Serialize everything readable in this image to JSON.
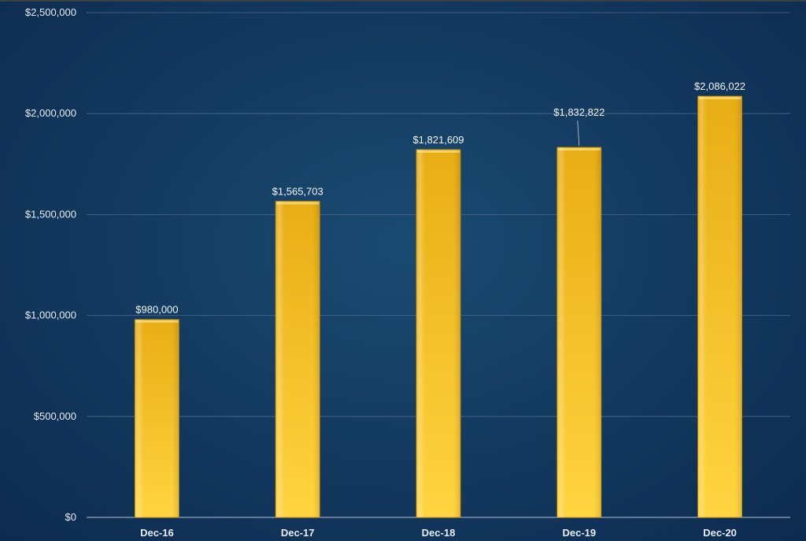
{
  "chart_data": {
    "type": "bar",
    "categories": [
      "Dec-16",
      "Dec-17",
      "Dec-18",
      "Dec-19",
      "Dec-20"
    ],
    "values": [
      980000,
      1565703,
      1821609,
      1832822,
      2086022
    ],
    "data_labels": [
      "$980,000",
      "$1,565,703",
      "$1,821,609",
      "$1,832,822",
      "$2,086,022"
    ],
    "y_ticks": [
      0,
      500000,
      1000000,
      1500000,
      2000000,
      2500000
    ],
    "y_tick_labels": [
      "$0",
      "$500,000",
      "$1,000,000",
      "$1,500,000",
      "$2,000,000",
      "$2,500,000"
    ],
    "ylim": [
      0,
      2500000
    ],
    "grid": true,
    "legend": "none",
    "colors": {
      "bar_top": "#e8ad15",
      "bar_bottom": "#ffd440",
      "gridline": "#4a6a8c",
      "text": "#e6edf5"
    }
  }
}
